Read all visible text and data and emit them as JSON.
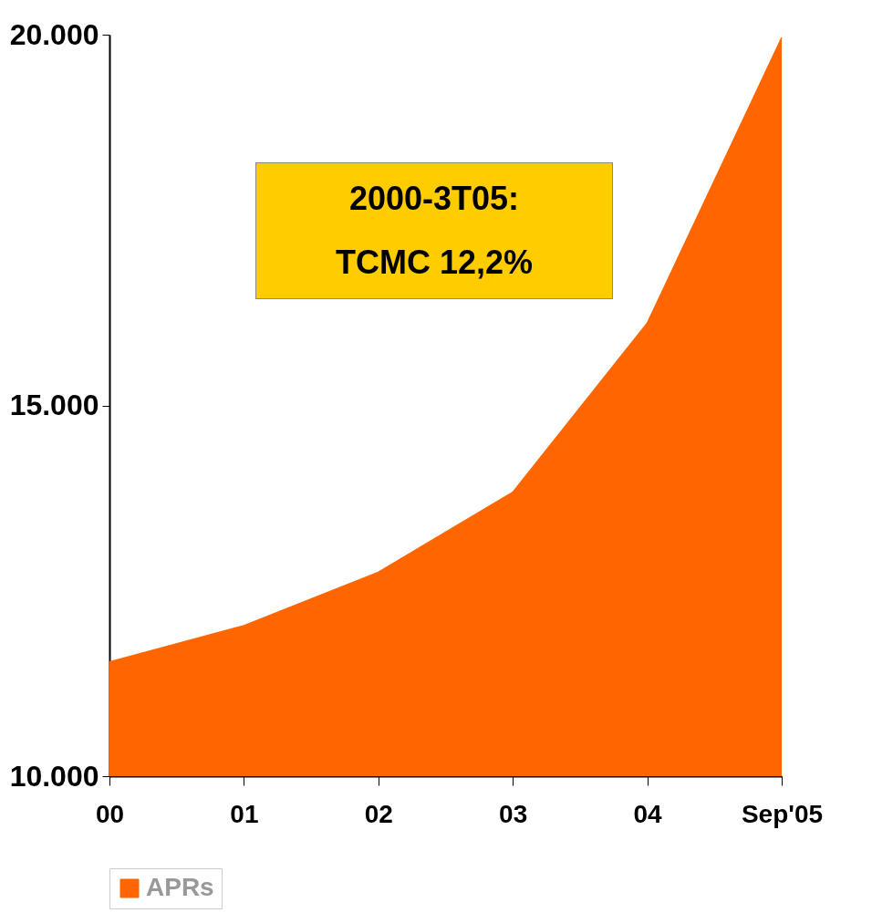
{
  "chart_data": {
    "type": "area",
    "categories": [
      "00",
      "01",
      "02",
      "03",
      "04",
      "Sep'05"
    ],
    "series": [
      {
        "name": "APRs",
        "color": "#ff6600",
        "values": [
          11540,
          12030,
          12750,
          13830,
          16110,
          19960
        ]
      }
    ],
    "ylim": [
      10000,
      20000
    ],
    "yticks": [
      {
        "value": 10000,
        "label": "10.000"
      },
      {
        "value": 15000,
        "label": "15.000"
      },
      {
        "value": 20000,
        "label": "20.000"
      }
    ],
    "annotations": [
      "2000-3T05:\nTCMC 12,2%"
    ],
    "grid": false,
    "legend": "bottom"
  }
}
